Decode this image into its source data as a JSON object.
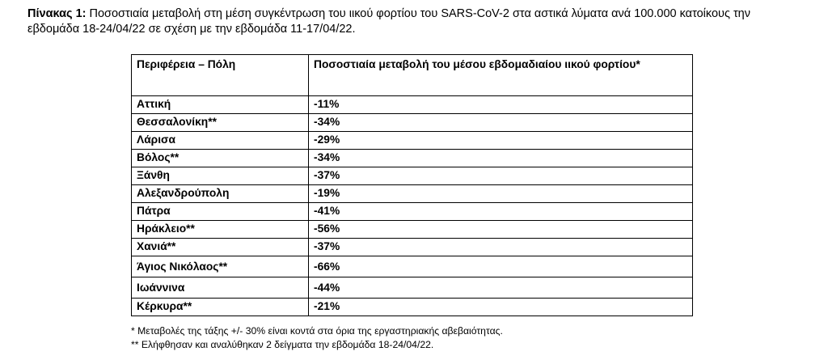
{
  "caption": {
    "label": "Πίνακας 1:",
    "text": " Ποσοστιαία μεταβολή στη μέση συγκέντρωση του ιικού φορτίου του SARS-CoV-2 στα αστικά λύματα ανά 100.000 κατοίκους την εβδομάδα 18-24/04/22 σε σχέση με την εβδομάδα 11-17/04/22."
  },
  "table": {
    "headers": [
      "Περιφέρεια – Πόλη",
      "Ποσοστιαία μεταβολή του μέσου εβδομαδιαίου ιικού φορτίου*"
    ],
    "rows": [
      {
        "city": "Αττική",
        "change": "-11%"
      },
      {
        "city": "Θεσσαλονίκη**",
        "change": "-34%"
      },
      {
        "city": "Λάρισα",
        "change": "-29%"
      },
      {
        "city": "Βόλος**",
        "change": "-34%"
      },
      {
        "city": "Ξάνθη",
        "change": "-37%"
      },
      {
        "city": "Αλεξανδρούπολη",
        "change": "-19%"
      },
      {
        "city": "Πάτρα",
        "change": "-41%"
      },
      {
        "city": "Ηράκλειο**",
        "change": "-56%"
      },
      {
        "city": "Χανιά**",
        "change": "-37%"
      },
      {
        "city": "Άγιος Νικόλαος**",
        "change": "-66%"
      },
      {
        "city": "Ιωάννινα",
        "change": "-44%"
      },
      {
        "city": "Κέρκυρα**",
        "change": "-21%"
      }
    ]
  },
  "notes": [
    "* Μεταβολές της τάξης +/- 30% είναι κοντά στα όρια της εργαστηριακής αβεβαιότητας.",
    "** Ελήφθησαν και αναλύθηκαν 2 δείγματα την εβδομάδα 18-24/04/22."
  ]
}
